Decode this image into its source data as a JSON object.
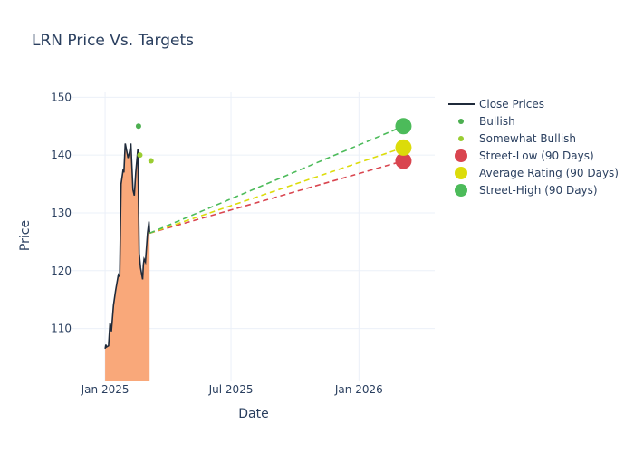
{
  "chart_data": {
    "type": "line",
    "title": "LRN Price Vs. Targets",
    "xlabel": "Date",
    "ylabel": "Price",
    "ylim": [
      101,
      151
    ],
    "xlim": [
      "2024-11-15",
      "2026-04-20"
    ],
    "grid": true,
    "legend_position": "right",
    "x_ticks": [
      {
        "date": "2025-01-01",
        "label": "Jan 2025"
      },
      {
        "date": "2025-07-01",
        "label": "Jul 2025"
      },
      {
        "date": "2026-01-01",
        "label": "Jan 2026"
      }
    ],
    "y_ticks": [
      110,
      120,
      130,
      140,
      150
    ],
    "close_prices": {
      "name": "Close Prices",
      "color": "#1f2a3a",
      "fill_color": "#f9a87a",
      "points": [
        [
          "2025-01-01",
          106.5
        ],
        [
          "2025-01-02",
          107.2
        ],
        [
          "2025-01-03",
          106.8
        ],
        [
          "2025-01-06",
          107.0
        ],
        [
          "2025-01-08",
          111.0
        ],
        [
          "2025-01-10",
          109.5
        ],
        [
          "2025-01-13",
          114.0
        ],
        [
          "2025-01-16",
          116.5
        ],
        [
          "2025-01-20",
          119.3
        ],
        [
          "2025-01-22",
          119.0
        ],
        [
          "2025-01-24",
          135.0
        ],
        [
          "2025-01-27",
          137.5
        ],
        [
          "2025-01-28",
          137.0
        ],
        [
          "2025-01-30",
          142.0
        ],
        [
          "2025-02-03",
          139.5
        ],
        [
          "2025-02-05",
          140.5
        ],
        [
          "2025-02-07",
          142.0
        ],
        [
          "2025-02-10",
          134.0
        ],
        [
          "2025-02-12",
          133.0
        ],
        [
          "2025-02-14",
          137.0
        ],
        [
          "2025-02-17",
          141.0
        ],
        [
          "2025-02-19",
          123.0
        ],
        [
          "2025-02-21",
          120.5
        ],
        [
          "2025-02-24",
          118.5
        ],
        [
          "2025-02-25",
          121.0
        ],
        [
          "2025-02-26",
          122.0
        ],
        [
          "2025-02-28",
          121.5
        ],
        [
          "2025-03-03",
          126.5
        ],
        [
          "2025-03-05",
          128.5
        ],
        [
          "2025-03-06",
          126.5
        ]
      ]
    },
    "ratings": [
      {
        "name": "Bullish",
        "color": "#4caf50",
        "points": [
          [
            "2025-02-18",
            145.0
          ]
        ]
      },
      {
        "name": "Somewhat Bullish",
        "color": "#9acd32",
        "points": [
          [
            "2025-02-20",
            140.0
          ],
          [
            "2025-03-08",
            139.0
          ]
        ]
      }
    ],
    "targets": [
      {
        "name": "Street-Low (90 Days)",
        "color": "#d9454f",
        "date": "2026-03-06",
        "value": 139.0
      },
      {
        "name": "Average Rating (90 Days)",
        "color": "#dcdc0a",
        "date": "2026-03-06",
        "value": 141.3
      },
      {
        "name": "Street-High (90 Days)",
        "color": "#4cbb5a",
        "date": "2026-03-06",
        "value": 145.0
      }
    ],
    "target_origin": {
      "date": "2025-03-06",
      "value": 126.5
    }
  }
}
